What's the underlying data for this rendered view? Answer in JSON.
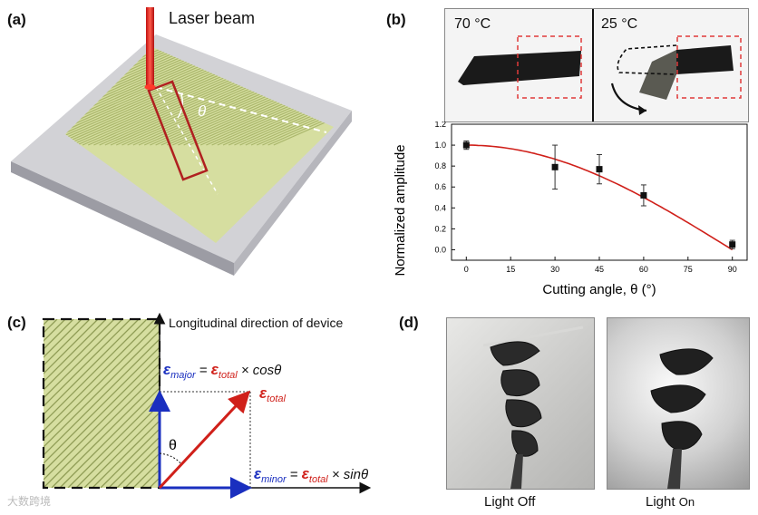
{
  "panels": {
    "a": {
      "label": "(a)",
      "laser_label": "Laser beam",
      "angle_symbol": "θ"
    },
    "b": {
      "label": "(b)",
      "photo_left_label": "70 °C",
      "photo_right_label": "25 °C"
    },
    "c": {
      "label": "(c)",
      "direction_label": "Longitudinal direction of device",
      "angle_symbol": "θ",
      "eq_major": {
        "eps": "ε",
        "sub": "major",
        "eq": " = ",
        "eps2": "ε",
        "sub2": "total",
        "tail": " × cosθ"
      },
      "eq_total": {
        "eps": "ε",
        "sub": "total"
      },
      "eq_minor": {
        "eps": "ε",
        "sub": "minor",
        "eq": " = ",
        "eps2": "ε",
        "sub2": "total",
        "tail": " × sinθ"
      }
    },
    "d": {
      "label": "(d)",
      "caption_left": "Light Off",
      "caption_right_a": "Light ",
      "caption_right_b": "On"
    }
  },
  "watermark": "大数跨境",
  "colors": {
    "red": "#d0201a",
    "blue": "#1a2fbf",
    "fiber": "#d6dea0",
    "plate": "#d2d2d6"
  },
  "chart_data": {
    "type": "scatter",
    "title": "",
    "xlabel": "Cutting angle, θ (°)",
    "ylabel": "Normalized amplitude",
    "xlim": [
      -5,
      95
    ],
    "ylim": [
      -0.1,
      1.2
    ],
    "xticks": [
      0,
      15,
      30,
      45,
      60,
      75,
      90
    ],
    "yticks": [
      0.0,
      0.2,
      0.4,
      0.6,
      0.8,
      1.0,
      1.2
    ],
    "points": [
      {
        "x": 0,
        "y": 1.0,
        "err": 0.04
      },
      {
        "x": 30,
        "y": 0.79,
        "err": 0.21
      },
      {
        "x": 45,
        "y": 0.77,
        "err": 0.14
      },
      {
        "x": 60,
        "y": 0.52,
        "err": 0.1
      },
      {
        "x": 90,
        "y": 0.05,
        "err": 0.04
      }
    ],
    "fit": "cos",
    "fit_color": "#d0201a"
  }
}
